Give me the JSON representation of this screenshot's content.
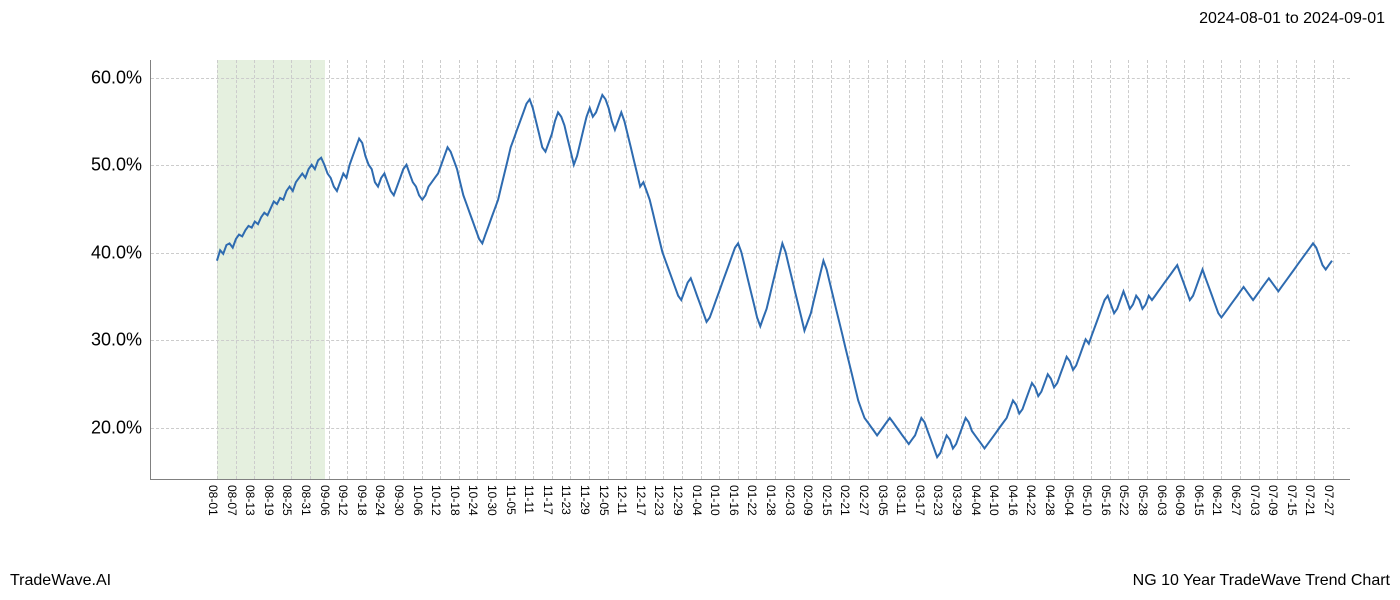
{
  "date_range": "2024-08-01 to 2024-09-01",
  "footer_left": "TradeWave.AI",
  "footer_right": "NG 10 Year TradeWave Trend Chart",
  "chart": {
    "type": "line",
    "background_color": "#ffffff",
    "grid_color": "#cccccc",
    "axis_color": "#808080",
    "line_color": "#2e6bb0",
    "line_width": 2,
    "highlight_color": "#d4e6c9",
    "highlight_opacity": 0.6,
    "highlight_start": "08-01",
    "highlight_end": "09-01",
    "ylim": [
      14,
      62
    ],
    "yticks": [
      20,
      30,
      40,
      50,
      60
    ],
    "ytick_labels": [
      "20.0%",
      "30.0%",
      "40.0%",
      "50.0%",
      "60.0%"
    ],
    "ytick_fontsize": 18,
    "xtick_fontsize": 12,
    "xticks": [
      "08-01",
      "08-07",
      "08-13",
      "08-19",
      "08-25",
      "08-31",
      "09-06",
      "09-12",
      "09-18",
      "09-24",
      "09-30",
      "10-06",
      "10-12",
      "10-18",
      "10-24",
      "10-30",
      "11-05",
      "11-11",
      "11-17",
      "11-23",
      "11-29",
      "12-05",
      "12-11",
      "12-17",
      "12-23",
      "12-29",
      "01-04",
      "01-10",
      "01-16",
      "01-22",
      "01-28",
      "02-03",
      "02-09",
      "02-15",
      "02-21",
      "02-27",
      "03-05",
      "03-11",
      "03-17",
      "03-23",
      "03-29",
      "04-04",
      "04-10",
      "04-16",
      "04-22",
      "04-28",
      "05-04",
      "05-10",
      "05-16",
      "05-22",
      "05-28",
      "06-03",
      "06-09",
      "06-15",
      "06-21",
      "06-27",
      "07-03",
      "07-09",
      "07-15",
      "07-21",
      "07-27"
    ],
    "series": [
      39.0,
      40.2,
      39.8,
      40.8,
      41.0,
      40.5,
      41.5,
      42.0,
      41.8,
      42.5,
      43.0,
      42.8,
      43.5,
      43.2,
      44.0,
      44.5,
      44.2,
      45.0,
      45.8,
      45.5,
      46.2,
      46.0,
      47.0,
      47.5,
      47.0,
      48.0,
      48.5,
      49.0,
      48.5,
      49.5,
      50.0,
      49.5,
      50.5,
      50.8,
      50.0,
      49.0,
      48.5,
      47.5,
      47.0,
      48.0,
      49.0,
      48.5,
      50.0,
      51.0,
      52.0,
      53.0,
      52.5,
      51.0,
      50.0,
      49.5,
      48.0,
      47.5,
      48.5,
      49.0,
      48.0,
      47.0,
      46.5,
      47.5,
      48.5,
      49.5,
      50.0,
      49.0,
      48.0,
      47.5,
      46.5,
      46.0,
      46.5,
      47.5,
      48.0,
      48.5,
      49.0,
      50.0,
      51.0,
      52.0,
      51.5,
      50.5,
      49.5,
      48.0,
      46.5,
      45.5,
      44.5,
      43.5,
      42.5,
      41.5,
      41.0,
      42.0,
      43.0,
      44.0,
      45.0,
      46.0,
      47.5,
      49.0,
      50.5,
      52.0,
      53.0,
      54.0,
      55.0,
      56.0,
      57.0,
      57.5,
      56.5,
      55.0,
      53.5,
      52.0,
      51.5,
      52.5,
      53.5,
      55.0,
      56.0,
      55.5,
      54.5,
      53.0,
      51.5,
      50.0,
      51.0,
      52.5,
      54.0,
      55.5,
      56.5,
      55.5,
      56.0,
      57.0,
      58.0,
      57.5,
      56.5,
      55.0,
      54.0,
      55.0,
      56.0,
      55.0,
      53.5,
      52.0,
      50.5,
      49.0,
      47.5,
      48.0,
      47.0,
      46.0,
      44.5,
      43.0,
      41.5,
      40.0,
      39.0,
      38.0,
      37.0,
      36.0,
      35.0,
      34.5,
      35.5,
      36.5,
      37.0,
      36.0,
      35.0,
      34.0,
      33.0,
      32.0,
      32.5,
      33.5,
      34.5,
      35.5,
      36.5,
      37.5,
      38.5,
      39.5,
      40.5,
      41.0,
      40.0,
      38.5,
      37.0,
      35.5,
      34.0,
      32.5,
      31.5,
      32.5,
      33.5,
      35.0,
      36.5,
      38.0,
      39.5,
      41.0,
      40.0,
      38.5,
      37.0,
      35.5,
      34.0,
      32.5,
      31.0,
      32.0,
      33.0,
      34.5,
      36.0,
      37.5,
      39.0,
      38.0,
      36.5,
      35.0,
      33.5,
      32.0,
      30.5,
      29.0,
      27.5,
      26.0,
      24.5,
      23.0,
      22.0,
      21.0,
      20.5,
      20.0,
      19.5,
      19.0,
      19.5,
      20.0,
      20.5,
      21.0,
      20.5,
      20.0,
      19.5,
      19.0,
      18.5,
      18.0,
      18.5,
      19.0,
      20.0,
      21.0,
      20.5,
      19.5,
      18.5,
      17.5,
      16.5,
      17.0,
      18.0,
      19.0,
      18.5,
      17.5,
      18.0,
      19.0,
      20.0,
      21.0,
      20.5,
      19.5,
      19.0,
      18.5,
      18.0,
      17.5,
      18.0,
      18.5,
      19.0,
      19.5,
      20.0,
      20.5,
      21.0,
      22.0,
      23.0,
      22.5,
      21.5,
      22.0,
      23.0,
      24.0,
      25.0,
      24.5,
      23.5,
      24.0,
      25.0,
      26.0,
      25.5,
      24.5,
      25.0,
      26.0,
      27.0,
      28.0,
      27.5,
      26.5,
      27.0,
      28.0,
      29.0,
      30.0,
      29.5,
      30.5,
      31.5,
      32.5,
      33.5,
      34.5,
      35.0,
      34.0,
      33.0,
      33.5,
      34.5,
      35.5,
      34.5,
      33.5,
      34.0,
      35.0,
      34.5,
      33.5,
      34.0,
      35.0,
      34.5,
      35.0,
      35.5,
      36.0,
      36.5,
      37.0,
      37.5,
      38.0,
      38.5,
      37.5,
      36.5,
      35.5,
      34.5,
      35.0,
      36.0,
      37.0,
      38.0,
      37.0,
      36.0,
      35.0,
      34.0,
      33.0,
      32.5,
      33.0,
      33.5,
      34.0,
      34.5,
      35.0,
      35.5,
      36.0,
      35.5,
      35.0,
      34.5,
      35.0,
      35.5,
      36.0,
      36.5,
      37.0,
      36.5,
      36.0,
      35.5,
      36.0,
      36.5,
      37.0,
      37.5,
      38.0,
      38.5,
      39.0,
      39.5,
      40.0,
      40.5,
      41.0,
      40.5,
      39.5,
      38.5,
      38.0,
      38.5,
      39.0
    ]
  }
}
